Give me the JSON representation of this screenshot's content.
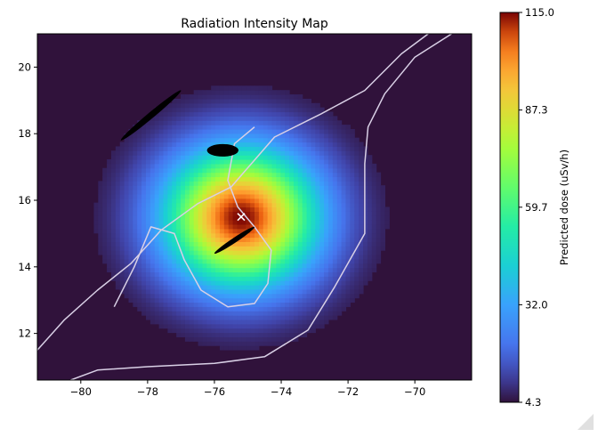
{
  "chart_data": {
    "type": "heatmap",
    "title": "Radiation Intensity Map",
    "xlabel": "",
    "ylabel": "",
    "xlim": [
      -81.3,
      -68.3
    ],
    "ylim": [
      10.6,
      21.0
    ],
    "x_ticks": [
      -80,
      -78,
      -76,
      -74,
      -72,
      -70
    ],
    "x_tick_labels": [
      "−80",
      "−78",
      "−76",
      "−74",
      "−72",
      "−70"
    ],
    "y_ticks": [
      12,
      14,
      16,
      18,
      20
    ],
    "y_tick_labels": [
      "12",
      "14",
      "16",
      "18",
      "20"
    ],
    "colorbar": {
      "label": "Predicted dose (uSv/h)",
      "min": 4.3,
      "max": 115.0,
      "ticks": [
        4.3,
        32.0,
        59.7,
        87.3,
        115.0
      ],
      "tick_labels": [
        "4.3",
        "32.0",
        "59.7",
        "87.3",
        "115.0"
      ],
      "colormap": "turbo"
    },
    "source_marker": {
      "x": -75.2,
      "y": 15.5,
      "symbol": "×",
      "color": "#ffffff"
    },
    "peak_location": {
      "x": -75.2,
      "y": 15.5,
      "value": 115.0
    },
    "background_value": 4.3,
    "coastlines": [
      {
        "name": "coastline-north",
        "color": "#d9d0e6",
        "points": [
          [
            -81.3,
            11.5
          ],
          [
            -80.5,
            12.4
          ],
          [
            -79.5,
            13.3
          ],
          [
            -78.5,
            14.1
          ],
          [
            -77.6,
            15.1
          ],
          [
            -76.5,
            15.9
          ],
          [
            -75.5,
            16.4
          ],
          [
            -74.2,
            17.9
          ],
          [
            -72.8,
            18.6
          ],
          [
            -71.5,
            19.3
          ],
          [
            -70.4,
            20.4
          ],
          [
            -69.6,
            21.0
          ]
        ]
      },
      {
        "name": "coastline-south",
        "color": "#d9d0e6",
        "points": [
          [
            -80.3,
            10.6
          ],
          [
            -79.5,
            10.9
          ],
          [
            -78.0,
            11.0
          ],
          [
            -76.0,
            11.1
          ],
          [
            -74.5,
            11.3
          ],
          [
            -73.2,
            12.1
          ],
          [
            -72.4,
            13.4
          ],
          [
            -71.5,
            15.0
          ],
          [
            -71.5,
            17.1
          ],
          [
            -71.4,
            18.2
          ],
          [
            -70.9,
            19.2
          ],
          [
            -70.0,
            20.3
          ],
          [
            -68.9,
            21.0
          ]
        ]
      },
      {
        "name": "coastline-island",
        "color": "#d9d0e6",
        "points": [
          [
            -79.0,
            12.8
          ],
          [
            -78.4,
            14.0
          ],
          [
            -77.9,
            15.2
          ],
          [
            -77.2,
            15.0
          ],
          [
            -76.9,
            14.2
          ],
          [
            -76.4,
            13.3
          ],
          [
            -75.6,
            12.8
          ],
          [
            -74.8,
            12.9
          ],
          [
            -74.4,
            13.5
          ],
          [
            -74.3,
            14.5
          ],
          [
            -74.8,
            15.2
          ],
          [
            -75.3,
            15.8
          ],
          [
            -75.6,
            16.6
          ],
          [
            -75.4,
            17.7
          ],
          [
            -74.8,
            18.2
          ]
        ]
      }
    ],
    "terrain_features": [
      {
        "name": "northern-landmass",
        "x": [
          -78.8,
          -77.0
        ],
        "y": [
          17.8,
          19.3
        ],
        "color": "#000000"
      },
      {
        "name": "central-landmass",
        "x": [
          -76.0,
          -75.5
        ],
        "y": [
          17.1,
          17.9
        ],
        "color": "#000000"
      },
      {
        "name": "ridge-landmass",
        "x": [
          -76.0,
          -74.8
        ],
        "y": [
          14.4,
          15.2
        ],
        "color": "#000000"
      }
    ]
  }
}
